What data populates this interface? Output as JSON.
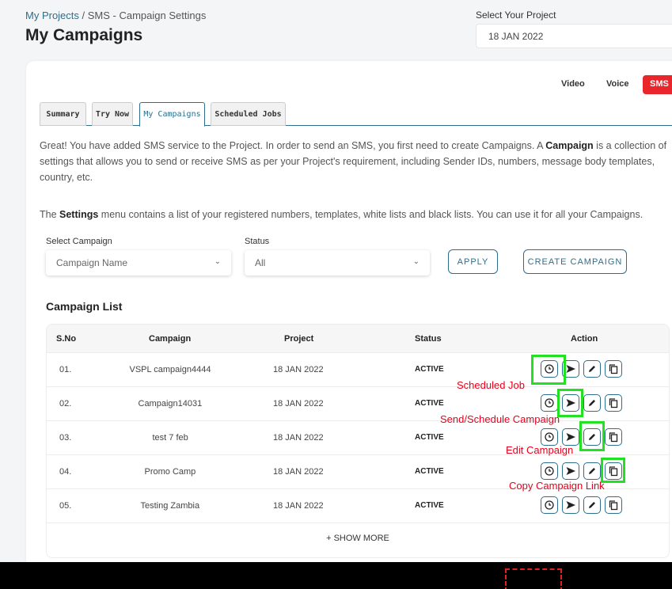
{
  "breadcrumb": {
    "link": "My Projects",
    "separator": " / ",
    "current": "SMS - Campaign Settings"
  },
  "page_title": "My Campaigns",
  "project_select": {
    "label": "Select Your Project",
    "value": "18 JAN 2022"
  },
  "channels": {
    "video": "Video",
    "voice": "Voice",
    "sms": "SMS"
  },
  "tabs": [
    {
      "label": "Summary"
    },
    {
      "label": "Try Now"
    },
    {
      "label": "My Campaigns"
    },
    {
      "label": "Scheduled Jobs"
    }
  ],
  "intro": {
    "part1": "Great! You have added SMS service to the Project. In order to send an SMS, you first need to create Campaigns. A ",
    "bold": "Campaign",
    "part2": " is a collection of settings that allows you to send or receive SMS as per your Project's requirement, including Sender IDs, numbers, message body templates, country, etc."
  },
  "intro2": {
    "part1": "The ",
    "bold": "Settings",
    "part2": " menu contains a list of your registered numbers, templates, white lists and black lists. You can use it for all your Campaigns."
  },
  "filters": {
    "campaign_label": "Select Campaign",
    "campaign_placeholder": "Campaign Name",
    "status_label": "Status",
    "status_value": "All",
    "apply": "APPLY",
    "create": "CREATE CAMPAIGN"
  },
  "list_title": "Campaign List",
  "table": {
    "headers": {
      "sno": "S.No",
      "campaign": "Campaign",
      "project": "Project",
      "status": "Status",
      "action": "Action"
    },
    "rows": [
      {
        "sno": "01.",
        "campaign": "VSPL campaign4444",
        "project": "18 JAN 2022",
        "status": "ACTIVE"
      },
      {
        "sno": "02.",
        "campaign": "Campaign14031",
        "project": "18 JAN 2022",
        "status": "ACTIVE"
      },
      {
        "sno": "03.",
        "campaign": "test 7 feb",
        "project": "18 JAN 2022",
        "status": "ACTIVE"
      },
      {
        "sno": "04.",
        "campaign": "Promo Camp",
        "project": "18 JAN 2022",
        "status": "ACTIVE"
      },
      {
        "sno": "05.",
        "campaign": "Testing Zambia",
        "project": "18 JAN 2022",
        "status": "ACTIVE"
      }
    ],
    "show_more": "+ SHOW MORE"
  },
  "annotations": {
    "scheduled_job": "Scheduled  Job",
    "send_schedule": "Send/Schedule Campaign",
    "edit": "Edit Campaign",
    "copy": "Copy Campaign Link"
  },
  "colors": {
    "accent": "#2e6f8d",
    "sms_tab": "#e8262c",
    "annotation": "#e8001c",
    "highlight": "#22e022"
  },
  "icons": {
    "schedule": "clock-icon",
    "send": "send-icon",
    "edit": "pencil-icon",
    "copy": "copy-icon"
  }
}
